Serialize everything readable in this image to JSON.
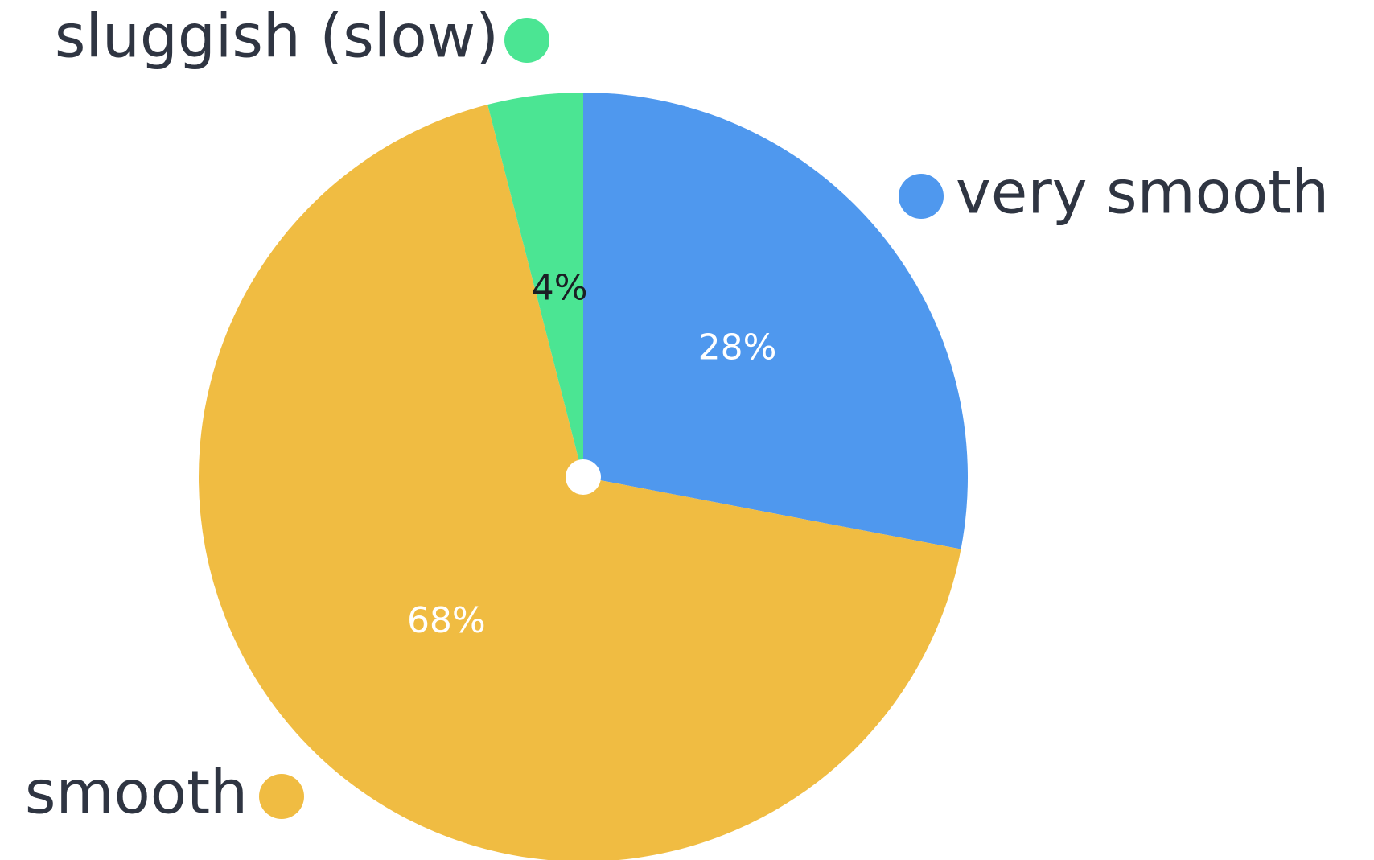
{
  "chart_data": {
    "type": "pie",
    "categories": [
      "very smooth",
      "smooth",
      "sluggish (slow)"
    ],
    "values": [
      28,
      68,
      4
    ],
    "value_labels": [
      "28%",
      "68%",
      "4%"
    ],
    "colors": [
      "#4f98ee",
      "#f0bc42",
      "#4be593"
    ],
    "value_label_colors": [
      "#ffffff",
      "#ffffff",
      "#1b1e24"
    ],
    "start_angle_deg": 0,
    "direction": "clockwise",
    "legend_placement": "around the pie, next to each slice",
    "title": "",
    "grid": false
  }
}
